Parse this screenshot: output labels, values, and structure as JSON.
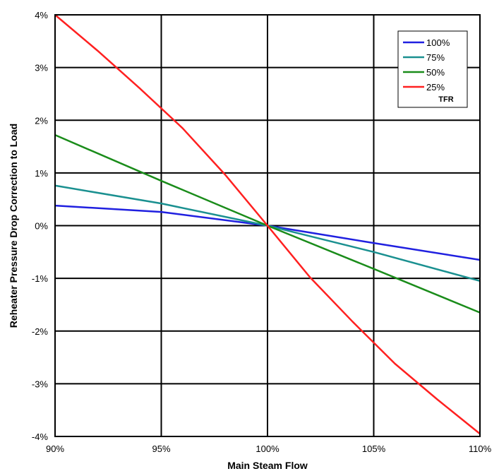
{
  "chart_data": {
    "type": "line",
    "title": "",
    "xlabel": "Main Steam Flow",
    "ylabel": "Reheater Pressure Drop Correction to Load",
    "xlim": [
      90,
      110
    ],
    "ylim": [
      -4,
      4
    ],
    "x_ticks": [
      {
        "value": 90,
        "label": "90%"
      },
      {
        "value": 95,
        "label": "95%"
      },
      {
        "value": 100,
        "label": "100%"
      },
      {
        "value": 105,
        "label": "105%"
      },
      {
        "value": 110,
        "label": "110%"
      }
    ],
    "y_ticks": [
      {
        "value": 4,
        "label": "4%"
      },
      {
        "value": 3,
        "label": "3%"
      },
      {
        "value": 2,
        "label": "2%"
      },
      {
        "value": 1,
        "label": "1%"
      },
      {
        "value": 0,
        "label": "0%"
      },
      {
        "value": -1,
        "label": "-1%"
      },
      {
        "value": -2,
        "label": "-2%"
      },
      {
        "value": -3,
        "label": "-3%"
      },
      {
        "value": -4,
        "label": "-4%"
      }
    ],
    "grid": true,
    "legend": {
      "placement": "top-right",
      "title": "TFR"
    },
    "series": [
      {
        "name": "100%",
        "color": "#2020e0",
        "x": [
          90,
          95,
          100,
          105,
          110
        ],
        "y": [
          0.38,
          0.26,
          0.0,
          -0.33,
          -0.65
        ]
      },
      {
        "name": "75%",
        "color": "#1a9090",
        "x": [
          90,
          95,
          100,
          105,
          110
        ],
        "y": [
          0.76,
          0.42,
          0.0,
          -0.5,
          -1.05
        ]
      },
      {
        "name": "50%",
        "color": "#1a8c1a",
        "x": [
          90,
          95,
          100,
          105,
          110
        ],
        "y": [
          1.72,
          0.85,
          0.0,
          -0.82,
          -1.65
        ]
      },
      {
        "name": "25%",
        "color": "#ff2020",
        "x": [
          90,
          92,
          94,
          96,
          98,
          100,
          102,
          104,
          106,
          108,
          110
        ],
        "y": [
          4.0,
          3.32,
          2.6,
          1.85,
          0.97,
          0.0,
          -0.98,
          -1.82,
          -2.62,
          -3.3,
          -3.95
        ]
      }
    ]
  }
}
